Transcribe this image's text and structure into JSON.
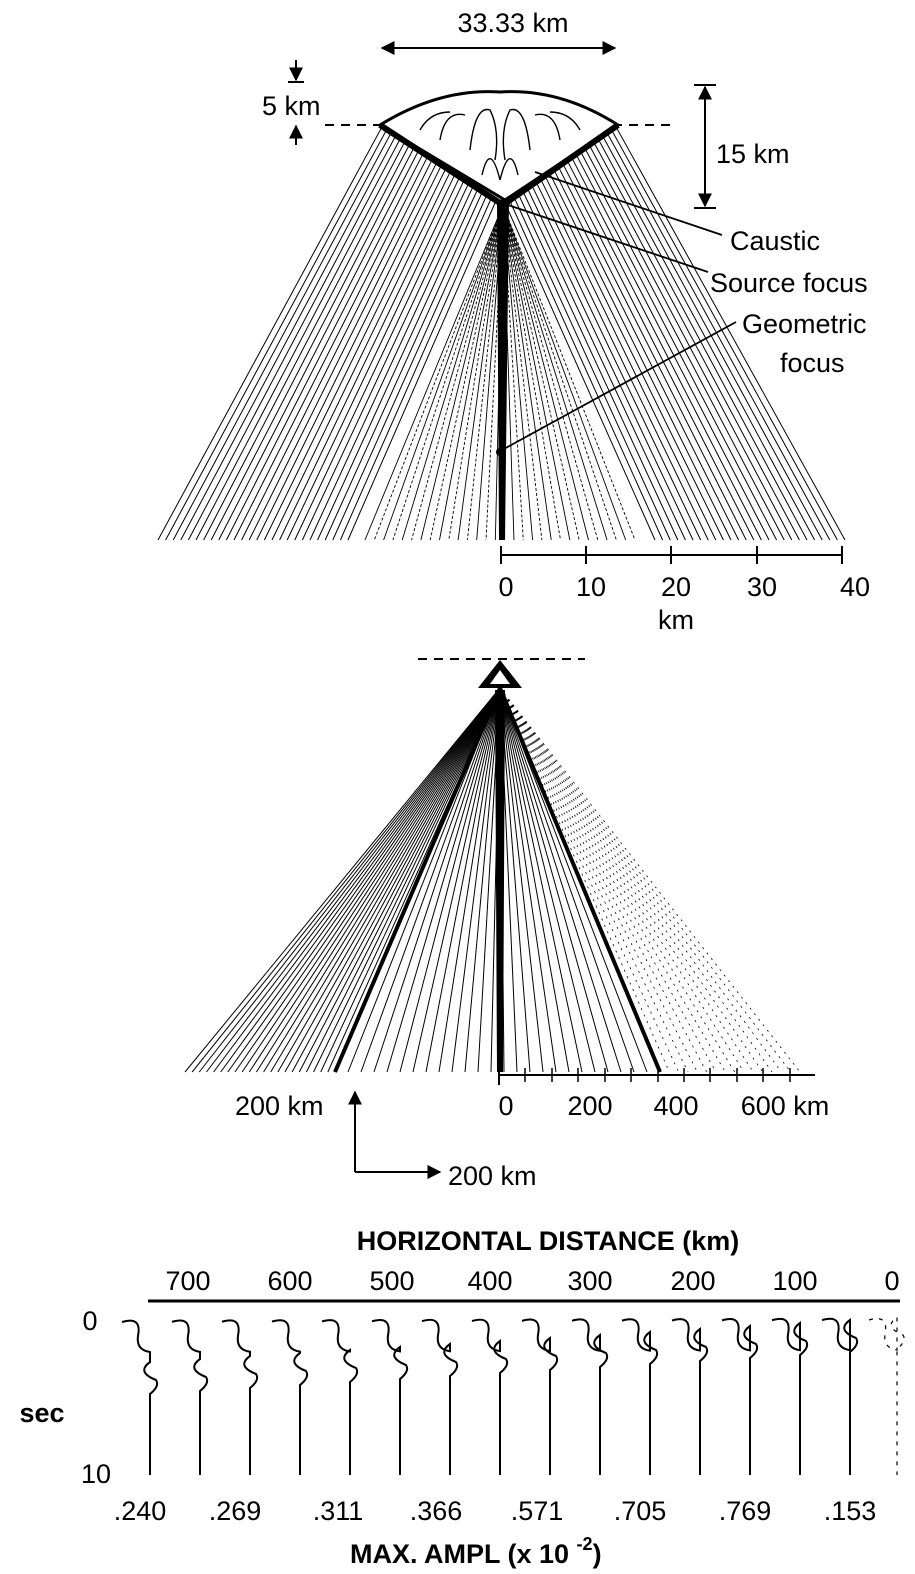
{
  "top_panel": {
    "width_label": "33.33 km",
    "depth_label": "5 km",
    "height_label": "15 km",
    "callouts": {
      "caustic": "Caustic",
      "source_focus": "Source  focus",
      "geometric_line1": "Geometric",
      "geometric_line2": "focus"
    },
    "axis_ticks": [
      "0",
      "10",
      "20",
      "30",
      "40"
    ],
    "axis_unit": "km"
  },
  "middle_panel": {
    "axis_ticks": [
      "0",
      "200",
      "400",
      "600 km"
    ],
    "scale_vertical": "200 km",
    "scale_horizontal": "200 km"
  },
  "bottom_panel": {
    "title": "HORIZONTAL  DISTANCE  (km)",
    "distance_ticks": [
      "700",
      "600",
      "500",
      "400",
      "300",
      "200",
      "100",
      "0"
    ],
    "time_axis_label": "sec",
    "time_ticks": [
      "0",
      "10"
    ],
    "amplitudes": [
      ".240",
      ".269",
      ".311",
      ".366",
      ".571",
      ".705",
      ".769",
      ".153"
    ],
    "amplitude_title_prefix": "MAX. AMPL (x 10 ",
    "amplitude_exponent": "-2",
    "amplitude_title_suffix": ")"
  }
}
